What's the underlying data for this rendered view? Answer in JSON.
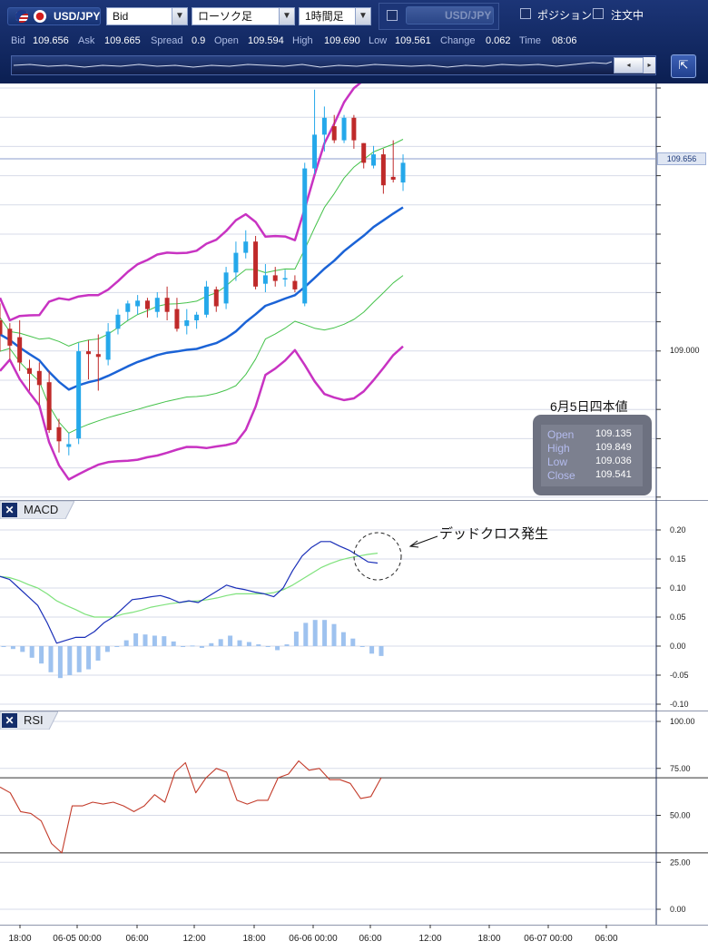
{
  "toolbar": {
    "symbol": "USD/JPY",
    "price_type": "Bid",
    "chart_type": "ローソク足",
    "timeframe": "1時間足",
    "compare_symbol": "USD/JPY",
    "position_label": "ポジション",
    "order_label": "注文中",
    "arrow": "▼"
  },
  "quote": {
    "bid_label": "Bid",
    "bid": "109.656",
    "ask_label": "Ask",
    "ask": "109.665",
    "spread_label": "Spread",
    "spread": "0.9",
    "open_label": "Open",
    "open": "109.594",
    "high_label": "High",
    "high": "109.690",
    "low_label": "Low",
    "low": "109.561",
    "change_label": "Change",
    "change": "0.062",
    "time_label": "Time",
    "time": "08:06"
  },
  "icons": {
    "flag_us": "us-flag-icon",
    "flag_jp": "jp-flag-icon",
    "corner": "expand-icon"
  },
  "main_chart": {
    "current_price": "109.656",
    "price_ticks": [
      "109.000"
    ],
    "info": {
      "title": "6月5日四本値",
      "rows": [
        {
          "k": "Open",
          "v": "109.135"
        },
        {
          "k": "High",
          "v": "109.849"
        },
        {
          "k": "Low",
          "v": "109.036"
        },
        {
          "k": "Close",
          "v": "109.541"
        }
      ]
    }
  },
  "macd": {
    "title": "MACD",
    "close_label": "✕",
    "annotation": "デッドクロス発生",
    "ticks": [
      "0.20",
      "0.15",
      "0.10",
      "0.05",
      "0.00",
      "-0.05",
      "-0.10"
    ]
  },
  "rsi": {
    "title": "RSI",
    "close_label": "✕",
    "ticks": [
      "100.00",
      "75.00",
      "50.00",
      "25.00",
      "0.00"
    ]
  },
  "x_axis": {
    "labels": [
      "18:00",
      "06-05 00:00",
      "06:00",
      "12:00",
      "18:00",
      "06-06 00:00",
      "06:00",
      "12:00",
      "18:00",
      "06-07 00:00",
      "06:00"
    ]
  },
  "chart_data": [
    {
      "type": "line",
      "name": "price-candlestick",
      "candles": [
        {
          "o": 109.1,
          "h": 109.16,
          "l": 108.99,
          "c": 109.05
        },
        {
          "o": 109.07,
          "h": 109.09,
          "l": 108.96,
          "c": 109.01
        },
        {
          "o": 109.04,
          "h": 109.1,
          "l": 108.92,
          "c": 108.95
        },
        {
          "o": 108.93,
          "h": 108.96,
          "l": 108.85,
          "c": 108.91
        },
        {
          "o": 108.92,
          "h": 108.95,
          "l": 108.8,
          "c": 108.87
        },
        {
          "o": 108.88,
          "h": 108.92,
          "l": 108.7,
          "c": 108.71
        },
        {
          "o": 108.72,
          "h": 108.75,
          "l": 108.63,
          "c": 108.67
        },
        {
          "o": 108.65,
          "h": 108.7,
          "l": 108.62,
          "c": 108.66
        },
        {
          "o": 108.68,
          "h": 109.02,
          "l": 108.66,
          "c": 108.99
        },
        {
          "o": 108.99,
          "h": 109.03,
          "l": 108.89,
          "c": 108.98
        },
        {
          "o": 108.98,
          "h": 109.05,
          "l": 108.85,
          "c": 108.97
        },
        {
          "o": 108.96,
          "h": 109.09,
          "l": 108.94,
          "c": 109.06
        },
        {
          "o": 109.07,
          "h": 109.14,
          "l": 109.05,
          "c": 109.12
        },
        {
          "o": 109.13,
          "h": 109.17,
          "l": 109.1,
          "c": 109.16
        },
        {
          "o": 109.15,
          "h": 109.19,
          "l": 109.12,
          "c": 109.17
        },
        {
          "o": 109.17,
          "h": 109.18,
          "l": 109.11,
          "c": 109.14
        },
        {
          "o": 109.13,
          "h": 109.2,
          "l": 109.11,
          "c": 109.18
        },
        {
          "o": 109.18,
          "h": 109.22,
          "l": 109.1,
          "c": 109.13
        },
        {
          "o": 109.14,
          "h": 109.18,
          "l": 109.06,
          "c": 109.07
        },
        {
          "o": 109.08,
          "h": 109.14,
          "l": 109.05,
          "c": 109.1
        },
        {
          "o": 109.1,
          "h": 109.13,
          "l": 109.07,
          "c": 109.12
        },
        {
          "o": 109.12,
          "h": 109.24,
          "l": 109.11,
          "c": 109.22
        },
        {
          "o": 109.21,
          "h": 109.22,
          "l": 109.13,
          "c": 109.15
        },
        {
          "o": 109.16,
          "h": 109.29,
          "l": 109.14,
          "c": 109.27
        },
        {
          "o": 109.27,
          "h": 109.38,
          "l": 109.24,
          "c": 109.34
        },
        {
          "o": 109.34,
          "h": 109.42,
          "l": 109.32,
          "c": 109.38
        },
        {
          "o": 109.38,
          "h": 109.4,
          "l": 109.21,
          "c": 109.22
        },
        {
          "o": 109.23,
          "h": 109.3,
          "l": 109.2,
          "c": 109.26
        },
        {
          "o": 109.26,
          "h": 109.29,
          "l": 109.22,
          "c": 109.24
        },
        {
          "o": 109.25,
          "h": 109.28,
          "l": 109.22,
          "c": 109.25
        },
        {
          "o": 109.24,
          "h": 109.26,
          "l": 109.2,
          "c": 109.21
        },
        {
          "o": 109.16,
          "h": 109.66,
          "l": 109.15,
          "c": 109.64
        },
        {
          "o": 109.64,
          "h": 109.92,
          "l": 109.62,
          "c": 109.76
        },
        {
          "o": 109.76,
          "h": 109.86,
          "l": 109.7,
          "c": 109.82
        },
        {
          "o": 109.79,
          "h": 109.83,
          "l": 109.73,
          "c": 109.74
        },
        {
          "o": 109.74,
          "h": 109.83,
          "l": 109.73,
          "c": 109.82
        },
        {
          "o": 109.82,
          "h": 109.83,
          "l": 109.71,
          "c": 109.74
        },
        {
          "o": 109.73,
          "h": 109.73,
          "l": 109.64,
          "c": 109.66
        },
        {
          "o": 109.65,
          "h": 109.72,
          "l": 109.64,
          "c": 109.69
        },
        {
          "o": 109.69,
          "h": 109.71,
          "l": 109.55,
          "c": 109.58
        },
        {
          "o": 109.61,
          "h": 109.74,
          "l": 109.59,
          "c": 109.6
        },
        {
          "o": 109.59,
          "h": 109.69,
          "l": 109.56,
          "c": 109.66
        }
      ],
      "ylim": [
        108.5,
        110.0
      ]
    },
    {
      "type": "line",
      "name": "macd",
      "series": [
        {
          "values": [
            0.12,
            0.115,
            0.1,
            0.085,
            0.07,
            0.04,
            0.005,
            0.01,
            0.015,
            0.015,
            0.025,
            0.04,
            0.05,
            0.065,
            0.08,
            0.082,
            0.085,
            0.087,
            0.082,
            0.075,
            0.078,
            0.075,
            0.085,
            0.095,
            0.105,
            0.1,
            0.097,
            0.093,
            0.09,
            0.085,
            0.1,
            0.13,
            0.155,
            0.17,
            0.18,
            0.18,
            0.172,
            0.165,
            0.155,
            0.145,
            0.143
          ]
        },
        {
          "values": [
            0.12,
            0.118,
            0.113,
            0.106,
            0.1,
            0.09,
            0.078,
            0.07,
            0.063,
            0.055,
            0.05,
            0.05,
            0.05,
            0.055,
            0.058,
            0.062,
            0.067,
            0.07,
            0.073,
            0.075,
            0.077,
            0.078,
            0.08,
            0.083,
            0.087,
            0.09,
            0.09,
            0.09,
            0.09,
            0.092,
            0.097,
            0.105,
            0.115,
            0.125,
            0.135,
            0.142,
            0.148,
            0.152,
            0.155,
            0.158,
            0.16
          ]
        },
        {
          "values": [
            0.0,
            -0.005,
            -0.01,
            -0.02,
            -0.03,
            -0.045,
            -0.055,
            -0.05,
            -0.045,
            -0.04,
            -0.025,
            -0.01,
            0.0,
            0.01,
            0.022,
            0.02,
            0.018,
            0.017,
            0.008,
            0.0,
            0.001,
            -0.003,
            0.005,
            0.012,
            0.018,
            0.01,
            0.007,
            0.003,
            0.0,
            -0.007,
            0.003,
            0.025,
            0.04,
            0.045,
            0.045,
            0.038,
            0.024,
            0.013,
            0.0,
            -0.013,
            -0.017
          ]
        }
      ],
      "ylim": [
        -0.1,
        0.2
      ]
    },
    {
      "type": "line",
      "name": "rsi",
      "series": [
        {
          "values": [
            65,
            62,
            52,
            51,
            47,
            35,
            30,
            55,
            55,
            57,
            56,
            57,
            55,
            52,
            55,
            61,
            57,
            73,
            78,
            62,
            70,
            75,
            73,
            58,
            56,
            58,
            58,
            70,
            72,
            79,
            74,
            75,
            69,
            69,
            67,
            59,
            60,
            70
          ]
        }
      ],
      "ylim": [
        0,
        100
      ]
    }
  ]
}
